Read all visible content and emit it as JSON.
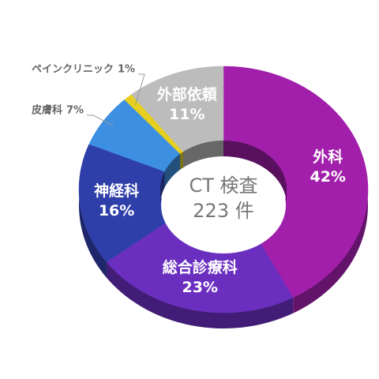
{
  "chart_data": {
    "type": "donut",
    "center_title": "CT 検査",
    "center_subtitle": "223 件",
    "categories": [
      "外科",
      "総合診療科",
      "神経科",
      "皮膚科",
      "ペインクリニック",
      "外部依頼"
    ],
    "values": [
      42,
      23,
      16,
      7,
      1,
      11
    ],
    "value_labels": [
      "42%",
      "23%",
      "16%",
      "7%",
      "1%",
      "11%"
    ],
    "colors": [
      "#a21fac",
      "#6b2fc0",
      "#2f3fa9",
      "#3d8fe2",
      "#e6cf1e",
      "#bcbcbc"
    ]
  }
}
